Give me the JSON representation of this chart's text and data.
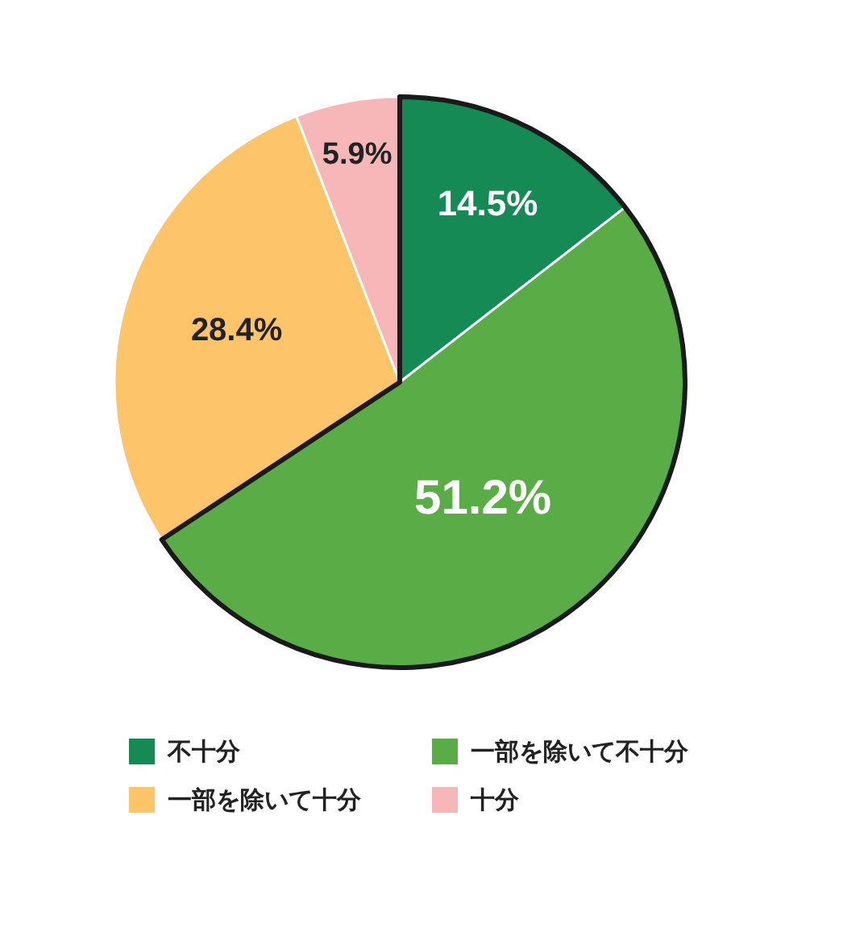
{
  "chart_data": {
    "type": "pie",
    "categories": [
      "不十分",
      "一部を除いて不十分",
      "一部を除いて十分",
      "十分"
    ],
    "values": [
      14.5,
      51.2,
      28.4,
      5.9
    ],
    "colors": [
      "#168a55",
      "#5aac46",
      "#fdc46a",
      "#f7b6b8"
    ],
    "value_labels": [
      "14.5%",
      "51.2%",
      "28.4%",
      "5.9%"
    ],
    "legend": "bottom"
  }
}
